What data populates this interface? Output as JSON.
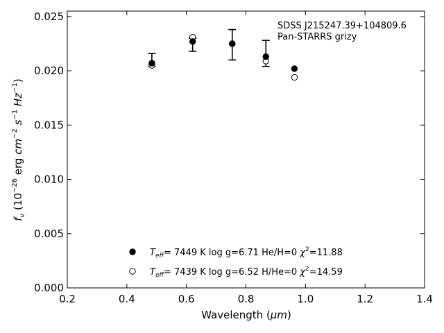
{
  "chart_data": {
    "type": "scatter",
    "title": "",
    "xlabel": {
      "main": "Wavelength (",
      "unit": "μm",
      "close": ")"
    },
    "ylabel": {
      "f": "f",
      "nu": "ν",
      "lp": " (10",
      "exp": "−26",
      "erg": " erg ",
      "cm": "cm",
      "cmexp": "−2",
      "s": " s",
      "sexp": "−1",
      "hz": " Hz",
      "hzexp": "−1",
      "rp": ")"
    },
    "xlim": [
      0.2,
      1.4
    ],
    "ylim": [
      0.0,
      0.0255
    ],
    "xticks": [
      0.2,
      0.4,
      0.6,
      0.8,
      1.0,
      1.2,
      1.4
    ],
    "xtick_labels": [
      "0.2",
      "0.4",
      "0.6",
      "0.8",
      "1.0",
      "1.2",
      "1.4"
    ],
    "yticks": [
      0.0,
      0.005,
      0.01,
      0.015,
      0.02,
      0.025
    ],
    "ytick_labels": [
      "0.000",
      "0.005",
      "0.010",
      "0.015",
      "0.020",
      "0.025"
    ],
    "grid": false,
    "legend_position": "bottom-center",
    "annotation": [
      "SDSS J215247.39+104809.6",
      "Pan-STARRS grizy"
    ],
    "observed": {
      "marker": "errorbar",
      "x": [
        0.484,
        0.621,
        0.754,
        0.867
      ],
      "y": [
        0.021,
        0.0224,
        0.0224,
        0.0216
      ],
      "err": [
        0.0006,
        0.0006,
        0.0014,
        0.0012
      ]
    },
    "series": [
      {
        "marker": "filled-circle",
        "color": "#000000",
        "x": [
          0.484,
          0.621,
          0.754,
          0.867,
          0.963
        ],
        "y": [
          0.0207,
          0.0227,
          0.0225,
          0.0213,
          0.0202
        ],
        "legend": {
          "T": "T",
          "eff": "eff",
          "rest": "=  7449 K  log g=6.71  He/H=0  ",
          "chi": "χ",
          "two": "2",
          "val": "=11.88"
        }
      },
      {
        "marker": "open-circle",
        "color": "#000000",
        "x": [
          0.484,
          0.621,
          0.754,
          0.867,
          0.963
        ],
        "y": [
          0.0205,
          0.0231,
          0.0225,
          0.0209,
          0.0194
        ],
        "legend": {
          "T": "T",
          "eff": "eff",
          "rest": "=  7439 K  log g=6.52  H/He=0  ",
          "chi": "χ",
          "two": "2",
          "val": "=14.59"
        }
      }
    ]
  }
}
